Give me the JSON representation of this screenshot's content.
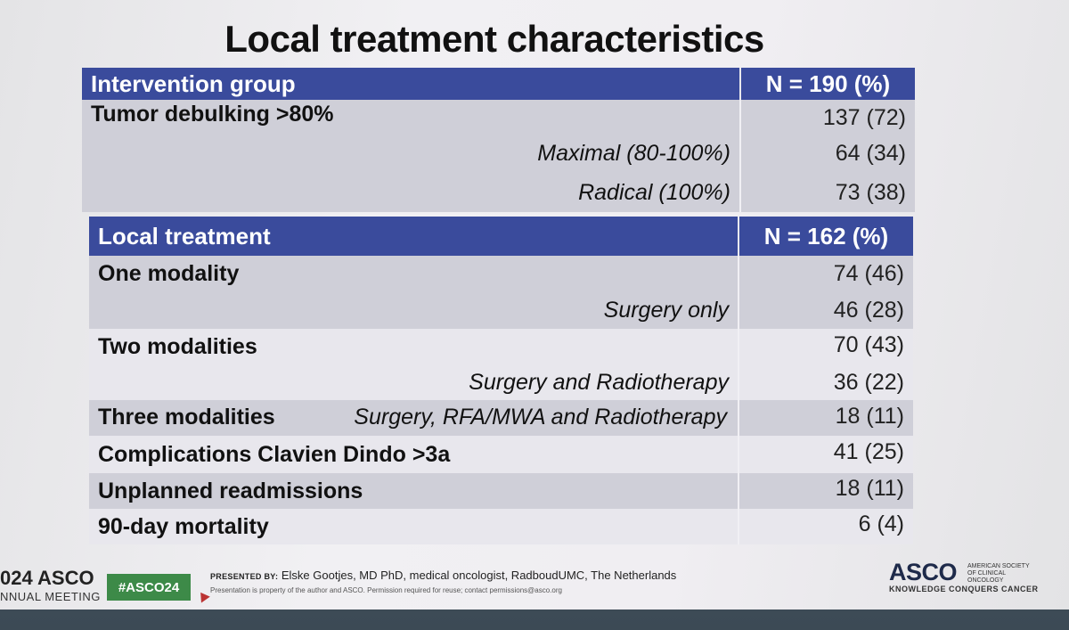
{
  "slide": {
    "title": "Local treatment characteristics"
  },
  "table1": {
    "header_label": "Intervention group",
    "header_n": "N = 190 (%)",
    "rows": [
      {
        "label": "Tumor debulking >80%",
        "value": "137 (72)"
      },
      {
        "label": "Maximal (80-100%)",
        "value": "64 (34)"
      },
      {
        "label": "Radical (100%)",
        "value": "73 (38)"
      }
    ]
  },
  "table2": {
    "header_label": "Local treatment",
    "header_n": "N = 162 (%)",
    "rows": [
      {
        "label": "One modality",
        "value": "74 (46)"
      },
      {
        "label": "Surgery only",
        "value": "46 (28)"
      },
      {
        "label": "Two modalities",
        "value": "70 (43)"
      },
      {
        "label": "Surgery and Radiotherapy",
        "value": "36 (22)"
      },
      {
        "label": "Three modalities",
        "sublabel": "Surgery, RFA/MWA and Radiotherapy",
        "value": "18 (11)"
      },
      {
        "label": "Complications Clavien Dindo >3a",
        "value": "41 (25)"
      },
      {
        "label": "Unplanned readmissions",
        "value": "18 (11)"
      },
      {
        "label": "90-day mortality",
        "value": "6 (4)"
      }
    ]
  },
  "footer": {
    "meeting_line1": "024 ASCO",
    "meeting_line2": "NNUAL MEETING",
    "hashtag": "#ASCO24",
    "presented_by_label": "PRESENTED BY:",
    "presented_by": "Elske Gootjes, MD PhD, medical oncologist, RadboudUMC, The Netherlands",
    "permission": "Presentation is property of the author and ASCO. Permission required for reuse; contact permissions@asco.org",
    "asco_logo": "ASCO",
    "asco_full": "AMERICAN SOCIETY OF CLINICAL ONCOLOGY",
    "tagline": "KNOWLEDGE CONQUERS CANCER"
  },
  "colors": {
    "header_bg": "#3a4b9c",
    "row_dark": "#cfcfd8",
    "row_light": "#e8e7ed",
    "hashtag_bg": "#3d8a48"
  }
}
